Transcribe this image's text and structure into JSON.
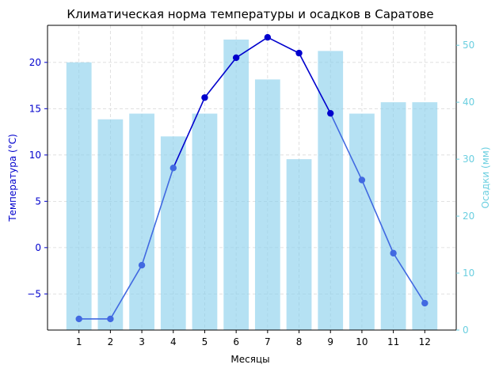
{
  "chart_data": {
    "type": "bar",
    "title": "Климатическая норма температуры и осадков в Саратове",
    "xlabel": "Месяцы",
    "ylabel_left": "Температура (°C)",
    "ylabel_right": "Осадки (мм)",
    "categories": [
      "1",
      "2",
      "3",
      "4",
      "5",
      "6",
      "7",
      "8",
      "9",
      "10",
      "11",
      "12"
    ],
    "grid": true,
    "ylim_left": [
      -8.9,
      24
    ],
    "ylim_right": [
      0,
      53.5
    ],
    "yticks_left": [
      "−5",
      "0",
      "5",
      "10",
      "15",
      "20"
    ],
    "yticks_left_values": [
      -5,
      0,
      5,
      10,
      15,
      20
    ],
    "yticks_right": [
      "0",
      "10",
      "20",
      "30",
      "40",
      "50"
    ],
    "yticks_right_values": [
      0,
      10,
      20,
      30,
      40,
      50
    ],
    "series": [
      {
        "type": "bar",
        "axis": "right",
        "values": [
          47,
          37,
          38,
          34,
          38,
          51,
          44,
          30,
          49,
          38,
          40,
          40
        ]
      },
      {
        "type": "line",
        "axis": "left",
        "values": [
          -7.7,
          -7.7,
          -1.9,
          8.6,
          16.2,
          20.5,
          22.7,
          21.0,
          14.5,
          7.3,
          -0.6,
          -6.0
        ]
      }
    ],
    "colors": {
      "bar": "#87ceeb",
      "line": "#0000cd",
      "line_light": "#4169e1",
      "left_axis": "#0000cd",
      "right_axis": "#6bcfe0",
      "grid": "#d9d9d9"
    }
  }
}
